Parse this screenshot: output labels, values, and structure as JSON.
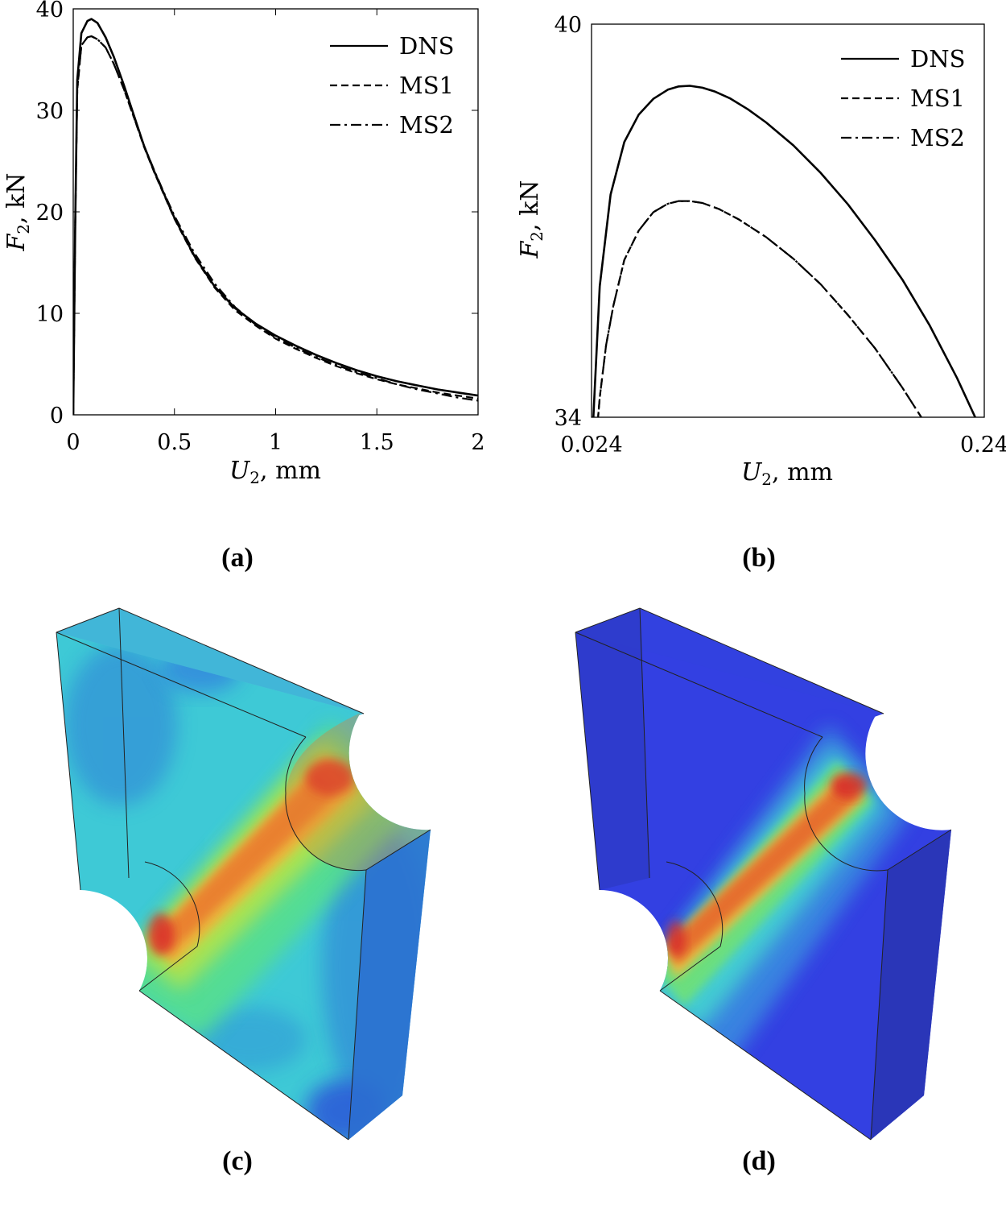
{
  "chart_data": [
    {
      "type": "line",
      "panel_label": "(a)",
      "xlabel": {
        "symbol": "U",
        "sub": "2",
        "unit": ", mm"
      },
      "ylabel": {
        "symbol": "F",
        "sub": "2",
        "unit": ", kN"
      },
      "xlim": [
        0,
        2
      ],
      "ylim": [
        0,
        40
      ],
      "x_ticks": [
        0,
        0.5,
        1,
        1.5,
        2
      ],
      "x_tick_labels": [
        "0",
        "0.5",
        "1",
        "1.5",
        "2"
      ],
      "y_ticks": [
        0,
        10,
        20,
        30,
        40
      ],
      "y_tick_labels": [
        "0",
        "10",
        "20",
        "30",
        "40"
      ],
      "legend_position": "top-right",
      "series": [
        {
          "name": "DNS",
          "style": "solid",
          "points": [
            [
              0,
              0
            ],
            [
              0.01,
              19
            ],
            [
              0.02,
              33
            ],
            [
              0.04,
              37.6
            ],
            [
              0.07,
              38.8
            ],
            [
              0.09,
              39.0
            ],
            [
              0.12,
              38.6
            ],
            [
              0.16,
              37.2
            ],
            [
              0.2,
              35.3
            ],
            [
              0.25,
              32.5
            ],
            [
              0.3,
              29.5
            ],
            [
              0.35,
              26.5
            ],
            [
              0.4,
              24.0
            ],
            [
              0.45,
              21.7
            ],
            [
              0.5,
              19.4
            ],
            [
              0.6,
              15.6
            ],
            [
              0.7,
              12.6
            ],
            [
              0.8,
              10.5
            ],
            [
              0.9,
              9.0
            ],
            [
              1.0,
              7.8
            ],
            [
              1.1,
              6.8
            ],
            [
              1.2,
              5.9
            ],
            [
              1.3,
              5.1
            ],
            [
              1.4,
              4.4
            ],
            [
              1.5,
              3.8
            ],
            [
              1.6,
              3.3
            ],
            [
              1.7,
              2.9
            ],
            [
              1.8,
              2.5
            ],
            [
              1.9,
              2.2
            ],
            [
              2.0,
              1.9
            ]
          ]
        },
        {
          "name": "MS1",
          "style": "dashed",
          "points": [
            [
              0,
              0
            ],
            [
              0.01,
              19
            ],
            [
              0.02,
              32
            ],
            [
              0.04,
              36.4
            ],
            [
              0.07,
              37.2
            ],
            [
              0.09,
              37.3
            ],
            [
              0.12,
              37.0
            ],
            [
              0.16,
              36.2
            ],
            [
              0.2,
              34.6
            ],
            [
              0.25,
              32.1
            ],
            [
              0.3,
              29.3
            ],
            [
              0.35,
              26.4
            ],
            [
              0.4,
              23.9
            ],
            [
              0.45,
              21.6
            ],
            [
              0.5,
              19.3
            ],
            [
              0.6,
              15.5
            ],
            [
              0.7,
              12.5
            ],
            [
              0.8,
              10.3
            ],
            [
              0.9,
              8.8
            ],
            [
              1.0,
              7.5
            ],
            [
              1.1,
              6.5
            ],
            [
              1.2,
              5.6
            ],
            [
              1.3,
              4.8
            ],
            [
              1.4,
              4.1
            ],
            [
              1.5,
              3.5
            ],
            [
              1.6,
              3.0
            ],
            [
              1.7,
              2.6
            ],
            [
              1.8,
              2.2
            ],
            [
              1.9,
              1.9
            ],
            [
              2.0,
              1.6
            ]
          ]
        },
        {
          "name": "MS2",
          "style": "dashdot",
          "points": [
            [
              0,
              0
            ],
            [
              0.01,
              19
            ],
            [
              0.02,
              32
            ],
            [
              0.04,
              36.4
            ],
            [
              0.07,
              37.2
            ],
            [
              0.09,
              37.3
            ],
            [
              0.12,
              37.0
            ],
            [
              0.16,
              36.2
            ],
            [
              0.2,
              34.6
            ],
            [
              0.25,
              32.1
            ],
            [
              0.3,
              29.3
            ],
            [
              0.35,
              26.5
            ],
            [
              0.4,
              24.1
            ],
            [
              0.45,
              21.8
            ],
            [
              0.5,
              19.6
            ],
            [
              0.6,
              15.9
            ],
            [
              0.7,
              12.9
            ],
            [
              0.8,
              10.6
            ],
            [
              0.9,
              8.9
            ],
            [
              1.0,
              7.6
            ],
            [
              1.1,
              6.6
            ],
            [
              1.2,
              5.7
            ],
            [
              1.3,
              4.9
            ],
            [
              1.4,
              4.2
            ],
            [
              1.5,
              3.6
            ],
            [
              1.6,
              3.0
            ],
            [
              1.7,
              2.5
            ],
            [
              1.8,
              2.1
            ],
            [
              1.9,
              1.7
            ],
            [
              2.0,
              1.4
            ]
          ]
        }
      ]
    },
    {
      "type": "line",
      "panel_label": "(b)",
      "xlabel": {
        "symbol": "U",
        "sub": "2",
        "unit": ", mm"
      },
      "ylabel": {
        "symbol": "F",
        "sub": "2",
        "unit": ", kN"
      },
      "xlim": [
        0.024,
        0.24
      ],
      "ylim": [
        34,
        40
      ],
      "x_ticks": [
        0.024,
        0.24
      ],
      "x_tick_labels": [
        "0.024",
        "0.24"
      ],
      "y_ticks": [
        34,
        40
      ],
      "y_tick_labels": [
        "34",
        "40"
      ],
      "legend_position": "top-right",
      "series": [
        {
          "name": "DNS",
          "style": "solid",
          "points": [
            [
              0.025,
              34.0
            ],
            [
              0.0285,
              36.0
            ],
            [
              0.0345,
              37.4
            ],
            [
              0.042,
              38.2
            ],
            [
              0.05,
              38.62
            ],
            [
              0.058,
              38.86
            ],
            [
              0.066,
              39.0
            ],
            [
              0.072,
              39.05
            ],
            [
              0.078,
              39.06
            ],
            [
              0.085,
              39.03
            ],
            [
              0.092,
              38.97
            ],
            [
              0.1,
              38.87
            ],
            [
              0.11,
              38.7
            ],
            [
              0.12,
              38.5
            ],
            [
              0.135,
              38.15
            ],
            [
              0.15,
              37.73
            ],
            [
              0.165,
              37.25
            ],
            [
              0.18,
              36.7
            ],
            [
              0.195,
              36.1
            ],
            [
              0.21,
              35.4
            ],
            [
              0.225,
              34.6
            ],
            [
              0.24,
              33.7
            ]
          ]
        },
        {
          "name": "MS1",
          "style": "dashed",
          "points": [
            [
              0.027,
              33.8
            ],
            [
              0.0285,
              34.3
            ],
            [
              0.032,
              35.1
            ],
            [
              0.036,
              35.7
            ],
            [
              0.042,
              36.4
            ],
            [
              0.05,
              36.85
            ],
            [
              0.058,
              37.13
            ],
            [
              0.066,
              37.26
            ],
            [
              0.072,
              37.3
            ],
            [
              0.078,
              37.3
            ],
            [
              0.085,
              37.27
            ],
            [
              0.094,
              37.18
            ],
            [
              0.105,
              37.02
            ],
            [
              0.12,
              36.75
            ],
            [
              0.135,
              36.42
            ],
            [
              0.15,
              36.03
            ],
            [
              0.165,
              35.56
            ],
            [
              0.18,
              35.05
            ],
            [
              0.195,
              34.45
            ],
            [
              0.21,
              33.8
            ]
          ]
        },
        {
          "name": "MS2",
          "style": "dashdot",
          "points": [
            [
              0.027,
              33.8
            ],
            [
              0.0285,
              34.3
            ],
            [
              0.032,
              35.1
            ],
            [
              0.036,
              35.7
            ],
            [
              0.042,
              36.4
            ],
            [
              0.05,
              36.85
            ],
            [
              0.058,
              37.13
            ],
            [
              0.066,
              37.26
            ],
            [
              0.072,
              37.3
            ],
            [
              0.078,
              37.3
            ],
            [
              0.085,
              37.27
            ],
            [
              0.094,
              37.18
            ],
            [
              0.105,
              37.02
            ],
            [
              0.12,
              36.75
            ],
            [
              0.135,
              36.42
            ],
            [
              0.15,
              36.03
            ],
            [
              0.165,
              35.56
            ],
            [
              0.18,
              35.05
            ],
            [
              0.195,
              34.45
            ],
            [
              0.21,
              33.8
            ]
          ]
        }
      ]
    }
  ],
  "figures": {
    "c": {
      "label": "(c)"
    },
    "d": {
      "label": "(d)"
    }
  }
}
